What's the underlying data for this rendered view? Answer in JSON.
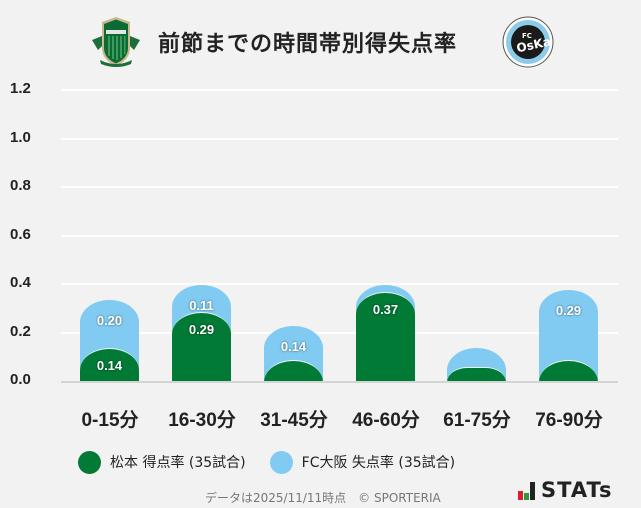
{
  "header": {
    "title": "前節までの時間帯別得失点率",
    "home_logo": "matsumoto-yamaga-crest",
    "away_logo": "fc-osaka-emblem"
  },
  "colors": {
    "home": "#017a35",
    "away": "#81cbf2",
    "background": "#f2f2f2",
    "grid": "#ffffff"
  },
  "chart_data": {
    "type": "bar",
    "stacked": true,
    "title": "前節までの時間帯別得失点率",
    "xlabel": "",
    "ylabel": "",
    "ylim": [
      0,
      1.2
    ],
    "yticks": [
      "1.2",
      "1.0",
      "0.8",
      "0.6",
      "0.4",
      "0.2",
      "0.0"
    ],
    "grid": true,
    "legend_position": "bottom",
    "categories": [
      "0-15分",
      "16-30分",
      "31-45分",
      "46-60分",
      "61-75分",
      "76-90分"
    ],
    "series": [
      {
        "name": "松本 得点率 (35試合)",
        "color": "#017a35",
        "values": [
          0.14,
          0.29,
          0.09,
          0.37,
          0.06,
          0.09
        ],
        "labels": [
          "0.14",
          "0.29",
          "",
          "0.37",
          "",
          ""
        ]
      },
      {
        "name": "FC大阪 失点率 (35試合)",
        "color": "#81cbf2",
        "values": [
          0.2,
          0.11,
          0.14,
          0.03,
          0.08,
          0.29
        ],
        "labels": [
          "0.20",
          "0.11",
          "0.14",
          "",
          "",
          "0.29"
        ]
      }
    ]
  },
  "legend": [
    {
      "label": "松本 得点率 (35試合)",
      "color": "#017a35"
    },
    {
      "label": "FC大阪 失点率 (35試合)",
      "color": "#81cbf2"
    }
  ],
  "footer": {
    "note": "データは2025/11/11時点　© SPORTERIA",
    "brand": "STATs"
  }
}
